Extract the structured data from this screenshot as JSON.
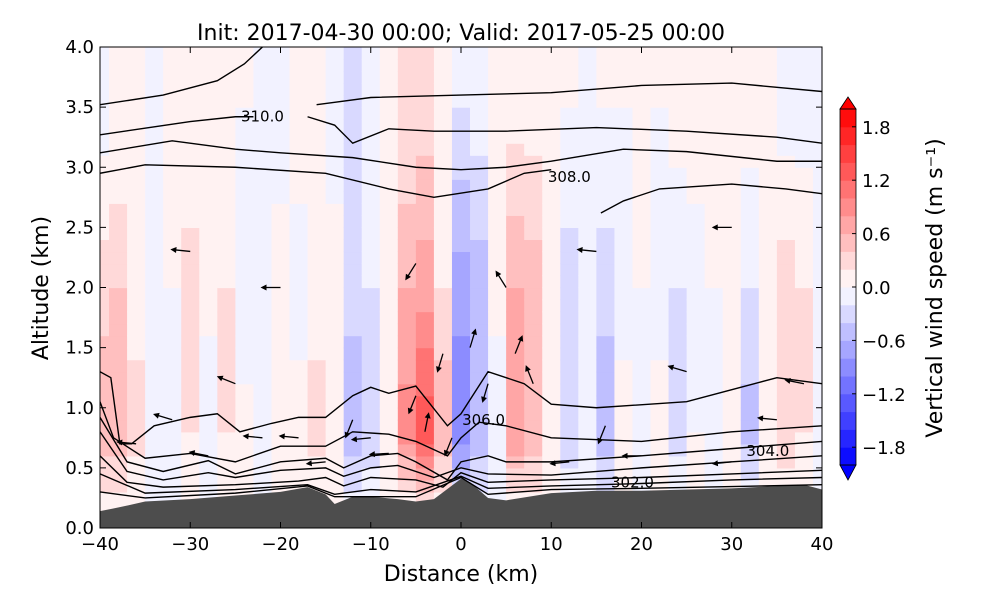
{
  "chart_data": {
    "type": "heatmap",
    "subtype": "filled-contour cross-section with potential temperature contours and wind vectors",
    "title": "Init: 2017-04-30 00:00; Valid: 2017-05-25 00:00",
    "xlabel": "Distance (km)",
    "ylabel": "Altitude (km)",
    "xlim": [
      -40,
      40
    ],
    "ylim": [
      0.0,
      4.0
    ],
    "xticks": [
      "−40",
      "−30",
      "−20",
      "−10",
      "0",
      "10",
      "20",
      "30",
      "40"
    ],
    "xtick_values": [
      -40,
      -30,
      -20,
      -10,
      0,
      10,
      20,
      30,
      40
    ],
    "yticks": [
      "0.0",
      "0.5",
      "1.0",
      "1.5",
      "2.0",
      "2.5",
      "3.0",
      "3.5",
      "4.0"
    ],
    "ytick_values": [
      0,
      0.5,
      1,
      1.5,
      2,
      2.5,
      3,
      3.5,
      4
    ],
    "grid": false,
    "colorbar": {
      "label": "Vertical wind speed (m s⁻¹)",
      "colormap": "bwr",
      "range": [
        -2.0,
        2.0
      ],
      "level_step": 0.2,
      "extend": "both",
      "ticks": [
        "1.8",
        "1.2",
        "0.6",
        "0.0",
        "−0.6",
        "−1.2",
        "−1.8"
      ],
      "tick_values": [
        1.8,
        1.2,
        0.6,
        0.0,
        -0.6,
        -1.2,
        -1.8
      ],
      "placement": "right"
    },
    "terrain": {
      "color": "#4d4d4d",
      "x": [
        -40,
        -38,
        -35,
        -30,
        -25,
        -20,
        -17,
        -15,
        -14,
        -12,
        -10,
        -7,
        -5,
        -3,
        0,
        1,
        3,
        5,
        10,
        15,
        20,
        30,
        38,
        40
      ],
      "z": [
        0.14,
        0.17,
        0.22,
        0.24,
        0.27,
        0.3,
        0.34,
        0.28,
        0.2,
        0.26,
        0.26,
        0.24,
        0.22,
        0.24,
        0.41,
        0.38,
        0.25,
        0.23,
        0.29,
        0.31,
        0.31,
        0.33,
        0.36,
        0.32
      ]
    },
    "vertical_wind_field": {
      "x": [
        -40,
        -38,
        -36,
        -34,
        -32,
        -30,
        -28,
        -26,
        -24,
        -22,
        -20,
        -18,
        -16,
        -14,
        -12,
        -10,
        -8,
        -6,
        -4,
        -2,
        0,
        2,
        4,
        6,
        8,
        10,
        12,
        14,
        16,
        18,
        20,
        22,
        24,
        26,
        28,
        30,
        32,
        34,
        36,
        38,
        40
      ],
      "z": [
        0.8,
        2.0,
        3.5
      ],
      "w": [
        [
          0.6,
          0.6,
          0.3,
          -0.2,
          -0.1,
          0.2,
          -0.2,
          0.2,
          0.1,
          -0.1,
          0.2,
          0.1,
          0.3,
          0.2,
          -0.6,
          -0.4,
          0.1,
          0.9,
          1.4,
          0.6,
          -1.0,
          -0.6,
          -0.2,
          0.8,
          0.6,
          0.2,
          -0.4,
          -0.2,
          -0.6,
          0.1,
          -0.2,
          0.1,
          -0.3,
          0.0,
          -0.1,
          0.1,
          -0.5,
          0.1,
          0.4,
          0.2,
          -0.1
        ],
        [
          0.3,
          0.4,
          0.1,
          -0.1,
          0.0,
          0.3,
          0.1,
          0.2,
          -0.2,
          0.0,
          0.1,
          -0.1,
          0.1,
          0.1,
          -0.3,
          -0.2,
          0.1,
          0.6,
          0.7,
          0.2,
          -0.7,
          -0.5,
          0.1,
          0.6,
          0.5,
          0.1,
          -0.3,
          -0.1,
          -0.3,
          -0.1,
          0.0,
          -0.1,
          -0.2,
          -0.1,
          0.0,
          0.1,
          -0.2,
          0.1,
          0.3,
          0.2,
          0.0
        ],
        [
          -0.1,
          0.0,
          0.1,
          -0.1,
          0.1,
          0.0,
          0.1,
          0.1,
          0.0,
          -0.1,
          -0.1,
          0.1,
          0.1,
          -0.1,
          -0.3,
          -0.2,
          0.1,
          0.2,
          0.3,
          0.1,
          -0.2,
          -0.1,
          0.0,
          0.1,
          0.1,
          0.1,
          0.0,
          -0.1,
          0.0,
          0.0,
          0.1,
          0.0,
          0.1,
          0.1,
          0.1,
          0.0,
          0.1,
          0.1,
          -0.1,
          -0.1,
          -0.1
        ]
      ]
    },
    "theta_contours": {
      "labels": [
        "310.0",
        "308.0",
        "306.0",
        "304.0",
        "302.0"
      ],
      "label_positions": [
        [
          -22,
          3.42
        ],
        [
          12,
          2.92
        ],
        [
          2.5,
          0.9
        ],
        [
          34,
          0.64
        ],
        [
          19,
          0.38
        ]
      ],
      "lines": [
        [
          [
            -40,
            3.52
          ],
          [
            -33,
            3.6
          ],
          [
            -27,
            3.72
          ],
          [
            -24,
            3.86
          ],
          [
            -22,
            4.0
          ]
        ],
        [
          [
            -16,
            3.52
          ],
          [
            -14,
            3.54
          ],
          [
            -10,
            3.58
          ],
          [
            0,
            3.6
          ],
          [
            10,
            3.62
          ],
          [
            20,
            3.68
          ],
          [
            30,
            3.7
          ],
          [
            40,
            3.63
          ]
        ],
        [
          [
            -40,
            3.27
          ],
          [
            -30,
            3.38
          ],
          [
            -25,
            3.42
          ],
          [
            -23,
            3.42
          ]
        ],
        [
          [
            -17,
            3.42
          ],
          [
            -14,
            3.35
          ],
          [
            -12,
            3.2
          ],
          [
            -8,
            3.32
          ],
          [
            -3,
            3.3
          ],
          [
            5,
            3.3
          ],
          [
            15,
            3.33
          ],
          [
            25,
            3.3
          ],
          [
            35,
            3.25
          ],
          [
            40,
            3.2
          ]
        ],
        [
          [
            -40,
            3.12
          ],
          [
            -32,
            3.22
          ],
          [
            -25,
            3.15
          ],
          [
            -20,
            3.12
          ],
          [
            -12,
            3.08
          ],
          [
            -5,
            3.0
          ],
          [
            0,
            2.98
          ],
          [
            5,
            3.0
          ],
          [
            10,
            3.05
          ],
          [
            18,
            3.15
          ],
          [
            25,
            3.13
          ],
          [
            35,
            3.05
          ],
          [
            40,
            3.05
          ]
        ],
        [
          [
            -40,
            2.95
          ],
          [
            -35,
            3.02
          ],
          [
            -25,
            3.0
          ],
          [
            -15,
            2.95
          ],
          [
            -8,
            2.82
          ],
          [
            -3,
            2.75
          ],
          [
            3,
            2.82
          ],
          [
            7,
            2.95
          ],
          [
            10,
            2.98
          ]
        ],
        [
          [
            15.5,
            2.62
          ],
          [
            18,
            2.72
          ],
          [
            22,
            2.82
          ],
          [
            30,
            2.86
          ],
          [
            36,
            2.82
          ],
          [
            40,
            2.78
          ]
        ],
        [
          [
            -40,
            1.3
          ],
          [
            -38.8,
            1.25
          ],
          [
            -37.8,
            0.7
          ],
          [
            -36.5,
            0.7
          ],
          [
            -34,
            0.85
          ],
          [
            -30,
            0.92
          ],
          [
            -27,
            0.95
          ],
          [
            -24.5,
            0.8
          ],
          [
            -21,
            0.87
          ],
          [
            -18,
            0.92
          ],
          [
            -15,
            0.92
          ],
          [
            -12,
            1.1
          ],
          [
            -10,
            1.17
          ],
          [
            -8,
            1.12
          ],
          [
            -5,
            1.18
          ],
          [
            -1.5,
            0.85
          ],
          [
            0,
            0.95
          ],
          [
            3,
            1.3
          ],
          [
            7,
            1.2
          ],
          [
            10,
            1.03
          ],
          [
            15,
            1.0
          ],
          [
            25,
            1.05
          ],
          [
            30,
            1.15
          ],
          [
            35,
            1.25
          ],
          [
            40,
            1.2
          ]
        ],
        [
          [
            -40,
            1.05
          ],
          [
            -38.5,
            0.75
          ],
          [
            -35,
            0.58
          ],
          [
            -30,
            0.62
          ],
          [
            -25,
            0.55
          ],
          [
            -20,
            0.68
          ],
          [
            -15,
            0.68
          ],
          [
            -12,
            0.8
          ],
          [
            -8,
            0.78
          ],
          [
            -5,
            0.72
          ],
          [
            -1.5,
            0.6
          ],
          [
            0,
            0.75
          ],
          [
            2,
            0.88
          ],
          [
            5,
            0.85
          ],
          [
            10,
            0.75
          ],
          [
            20,
            0.72
          ],
          [
            30,
            0.8
          ],
          [
            40,
            0.85
          ]
        ],
        [
          [
            -40,
            0.92
          ],
          [
            -37,
            0.55
          ],
          [
            -33,
            0.47
          ],
          [
            -28,
            0.56
          ],
          [
            -25,
            0.45
          ],
          [
            -20,
            0.55
          ],
          [
            -15,
            0.58
          ],
          [
            -13,
            0.5
          ],
          [
            -10,
            0.6
          ],
          [
            -7,
            0.62
          ],
          [
            -5,
            0.55
          ],
          [
            -1.5,
            0.4
          ],
          [
            0,
            0.55
          ],
          [
            3,
            0.6
          ],
          [
            5,
            0.55
          ],
          [
            10,
            0.55
          ],
          [
            20,
            0.6
          ],
          [
            30,
            0.66
          ],
          [
            40,
            0.72
          ]
        ],
        [
          [
            -40,
            0.8
          ],
          [
            -37,
            0.47
          ],
          [
            -33,
            0.4
          ],
          [
            -28,
            0.46
          ],
          [
            -25,
            0.42
          ],
          [
            -20,
            0.48
          ],
          [
            -15,
            0.5
          ],
          [
            -13,
            0.43
          ],
          [
            -10,
            0.5
          ],
          [
            -7,
            0.52
          ],
          [
            -3,
            0.42
          ],
          [
            0,
            0.5
          ],
          [
            3,
            0.45
          ],
          [
            10,
            0.44
          ],
          [
            20,
            0.5
          ],
          [
            30,
            0.55
          ],
          [
            40,
            0.6
          ]
        ],
        [
          [
            -40,
            0.6
          ],
          [
            -37,
            0.38
          ],
          [
            -33,
            0.34
          ],
          [
            -25,
            0.36
          ],
          [
            -18,
            0.39
          ],
          [
            -15,
            0.42
          ],
          [
            -13,
            0.35
          ],
          [
            -10,
            0.42
          ],
          [
            -5,
            0.4
          ],
          [
            -2,
            0.34
          ],
          [
            0,
            0.46
          ],
          [
            3,
            0.38
          ],
          [
            10,
            0.4
          ],
          [
            20,
            0.42
          ],
          [
            30,
            0.45
          ],
          [
            40,
            0.48
          ]
        ],
        [
          [
            -40,
            0.45
          ],
          [
            -35,
            0.29
          ],
          [
            -25,
            0.32
          ],
          [
            -17,
            0.36
          ],
          [
            -14,
            0.28
          ],
          [
            -10,
            0.32
          ],
          [
            -5,
            0.3
          ],
          [
            0,
            0.43
          ],
          [
            3,
            0.33
          ],
          [
            10,
            0.35
          ],
          [
            20,
            0.37
          ],
          [
            30,
            0.4
          ],
          [
            40,
            0.42
          ]
        ],
        [
          [
            -40,
            0.3
          ],
          [
            -35,
            0.25
          ],
          [
            -25,
            0.29
          ],
          [
            -17,
            0.35
          ],
          [
            -14,
            0.26
          ],
          [
            -5,
            0.26
          ],
          [
            0,
            0.42
          ],
          [
            3,
            0.28
          ],
          [
            10,
            0.32
          ],
          [
            20,
            0.33
          ],
          [
            40,
            0.36
          ]
        ]
      ]
    },
    "wind_vectors": {
      "note_units": "relative",
      "points": [
        [
          -36,
          0.7,
          -1,
          0.1
        ],
        [
          -32,
          0.9,
          -1,
          0.3
        ],
        [
          -28,
          0.6,
          -1,
          0.2
        ],
        [
          -25,
          1.2,
          -1,
          0.4
        ],
        [
          -22,
          0.75,
          -1,
          0.1
        ],
        [
          -18,
          0.75,
          -1,
          0.1
        ],
        [
          -15,
          0.55,
          -1,
          -0.1
        ],
        [
          -12,
          0.9,
          -0.4,
          -1
        ],
        [
          -10,
          0.75,
          -1,
          -0.1
        ],
        [
          -8,
          0.62,
          -1,
          -0.05
        ],
        [
          -5,
          1.1,
          -0.4,
          -1
        ],
        [
          -4,
          0.8,
          0.2,
          1
        ],
        [
          -2,
          1.45,
          -0.3,
          -1
        ],
        [
          -1,
          0.75,
          -0.4,
          -1
        ],
        [
          1,
          1.5,
          0.3,
          1
        ],
        [
          3,
          1.2,
          -0.3,
          -1
        ],
        [
          6,
          1.45,
          0.4,
          1
        ],
        [
          8,
          1.2,
          -0.4,
          1
        ],
        [
          12,
          0.55,
          -1,
          -0.1
        ],
        [
          16,
          0.85,
          -0.4,
          -1
        ],
        [
          20,
          0.6,
          -1,
          0
        ],
        [
          25,
          1.3,
          -1,
          0.3
        ],
        [
          30,
          0.55,
          -1,
          -0.1
        ],
        [
          35,
          0.9,
          -1,
          0.1
        ],
        [
          38,
          1.2,
          -1,
          0.2
        ],
        [
          -30,
          2.3,
          -1,
          0.1
        ],
        [
          -20,
          2.0,
          -1,
          0
        ],
        [
          -5,
          2.2,
          -0.5,
          -0.8
        ],
        [
          5,
          2.0,
          -0.5,
          0.8
        ],
        [
          15,
          2.3,
          -1,
          0.1
        ],
        [
          30,
          2.5,
          -1,
          0
        ]
      ]
    }
  }
}
